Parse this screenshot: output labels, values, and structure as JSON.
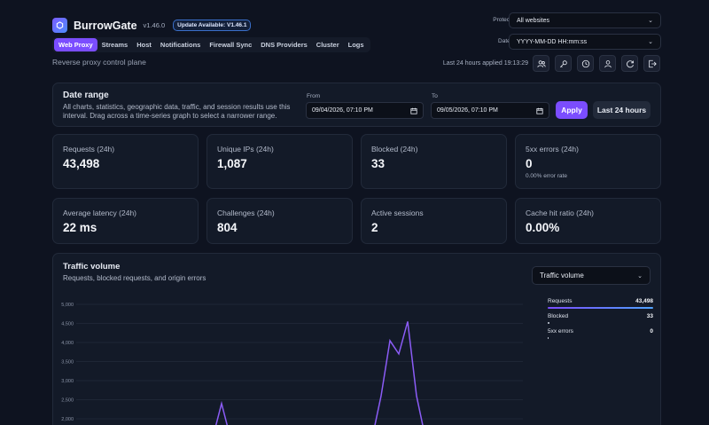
{
  "header": {
    "app_name": "BurrowGate",
    "version": "v1.46.0",
    "update_badge": "Update Available: V1.46.1",
    "subtitle": "Reverse proxy control plane",
    "nav_tabs": [
      "Web Proxy",
      "Streams",
      "Host",
      "Notifications",
      "Firewall Sync",
      "DNS Providers",
      "Cluster",
      "Logs"
    ],
    "active_tab": "Web Proxy",
    "protected_site_label": "Protected site",
    "protected_site_value": "All websites",
    "date_format_label": "Date format",
    "date_format_value": "YYYY-MM-DD HH:mm:ss",
    "applied_text": "Last 24 hours applied 19:13:29",
    "icons": [
      "users-icon",
      "key-icon",
      "history-icon",
      "user-icon",
      "refresh-icon",
      "logout-icon"
    ]
  },
  "date_range": {
    "title": "Date range",
    "description": "All charts, statistics, geographic data, traffic, and session results use this interval. Drag across a time-series graph to select a narrower range.",
    "from_label": "From",
    "from_value": "09/04/2026, 07:10 PM",
    "to_label": "To",
    "to_value": "09/05/2026, 07:10 PM",
    "apply_label": "Apply",
    "last24_label": "Last 24 hours"
  },
  "stats": [
    {
      "label": "Requests (24h)",
      "value": "43,498",
      "sub": ""
    },
    {
      "label": "Unique IPs (24h)",
      "value": "1,087",
      "sub": ""
    },
    {
      "label": "Blocked (24h)",
      "value": "33",
      "sub": ""
    },
    {
      "label": "5xx errors (24h)",
      "value": "0",
      "sub": "0.00% error rate"
    },
    {
      "label": "Average latency (24h)",
      "value": "22 ms",
      "sub": ""
    },
    {
      "label": "Challenges (24h)",
      "value": "804",
      "sub": ""
    },
    {
      "label": "Active sessions",
      "value": "2",
      "sub": ""
    },
    {
      "label": "Cache hit ratio (24h)",
      "value": "0.00%",
      "sub": ""
    }
  ],
  "traffic": {
    "title": "Traffic volume",
    "subtitle": "Requests, blocked requests, and origin errors",
    "select_value": "Traffic volume",
    "legend": [
      {
        "name": "Requests",
        "value": "43,498",
        "color": "#6f8cff",
        "fraction": 1.0
      },
      {
        "name": "Blocked",
        "value": "33",
        "color": "#cfd5e1",
        "fraction": 0.001
      },
      {
        "name": "5xx errors",
        "value": "0",
        "color": "#cfd5e1",
        "fraction": 0.0
      }
    ]
  },
  "chart_data": {
    "type": "line",
    "title": "Traffic volume",
    "y_ticks": [
      "5,000",
      "4,500",
      "4,000",
      "3,500",
      "3,000",
      "2,500",
      "2,000"
    ],
    "ylim": [
      1500,
      5000
    ],
    "grid": true,
    "series": [
      {
        "name": "Requests",
        "color": "#8b5cf6",
        "x": [
          0,
          1,
          2,
          3,
          4,
          5,
          6,
          7,
          8,
          9,
          10,
          11,
          12,
          13,
          14,
          15,
          16,
          17,
          18,
          19,
          20,
          21,
          22,
          23,
          24,
          25,
          26,
          27,
          28,
          29,
          30,
          31,
          32,
          33,
          34,
          35,
          36,
          37,
          38,
          39,
          40,
          41,
          42,
          43,
          44,
          45,
          46,
          47,
          48,
          49,
          50
        ],
        "values": [
          1500,
          1500,
          1500,
          1500,
          1500,
          1500,
          1500,
          1500,
          1500,
          1500,
          1500,
          1500,
          1500,
          1500,
          1500,
          1500,
          2400,
          1500,
          1500,
          1500,
          1500,
          1500,
          1500,
          1500,
          1500,
          1500,
          1500,
          1500,
          1500,
          1500,
          1500,
          1500,
          1500,
          1500,
          2600,
          4050,
          3700,
          4550,
          2600,
          1500,
          1500,
          1500,
          1500,
          1500,
          1500,
          1500,
          1500,
          1500,
          1500,
          1500,
          1500
        ]
      }
    ]
  }
}
